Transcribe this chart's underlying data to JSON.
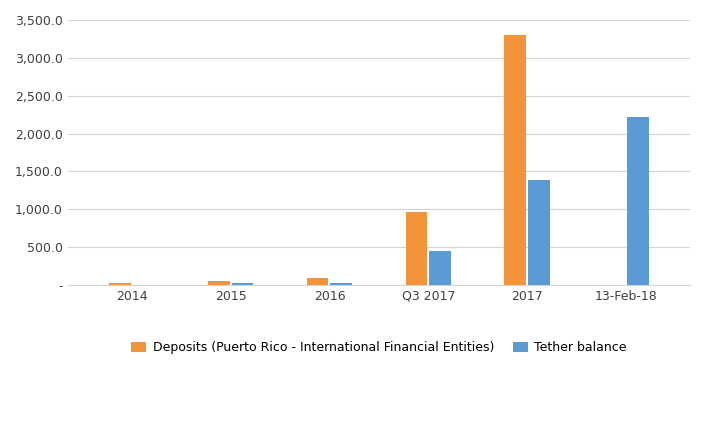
{
  "categories": [
    "2014",
    "2015",
    "2016",
    "Q3 2017",
    "2017",
    "13-Feb-18"
  ],
  "deposits": [
    30,
    55,
    95,
    960,
    3300,
    0
  ],
  "tether": [
    0,
    25,
    30,
    450,
    1380,
    2220
  ],
  "deposit_color": "#F4943A",
  "tether_color": "#5B9BD5",
  "ylim": [
    0,
    3500
  ],
  "yticks": [
    0,
    500,
    1000,
    1500,
    2000,
    2500,
    3000,
    3500
  ],
  "legend_deposit": "Deposits (Puerto Rico - International Financial Entities)",
  "legend_tether": "Tether balance",
  "background_color": "#ffffff",
  "grid_color": "#d4d4d4",
  "bar_width": 0.22
}
